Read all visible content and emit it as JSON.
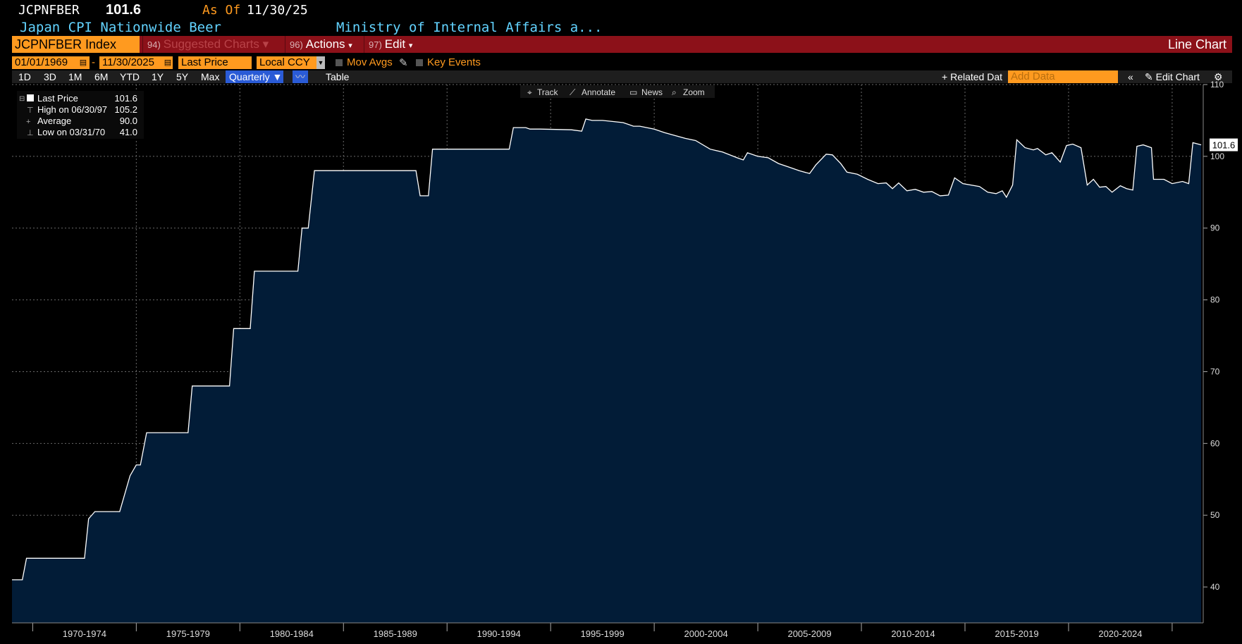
{
  "header": {
    "ticker": "JCPNFBER",
    "last_price": "101.6",
    "as_of_label": "As Of",
    "as_of_date": "11/30/25",
    "description": "Japan CPI Nationwide Beer",
    "source": "Ministry of Internal Affairs a..."
  },
  "menu": {
    "security": "JCPNFBER Index",
    "suggested_num": "94)",
    "suggested": "Suggested Charts",
    "actions_num": "96)",
    "actions": "Actions",
    "edit_num": "97)",
    "edit": "Edit",
    "chart_type": "Line Chart"
  },
  "controls": {
    "start_date": "01/01/1969",
    "dash": "-",
    "end_date": "11/30/2025",
    "price_field": "Last Price",
    "currency": "Local CCY",
    "mov_avgs": "Mov Avgs",
    "key_events": "Key Events"
  },
  "toolbar": {
    "periods": [
      "1D",
      "3D",
      "1M",
      "6M",
      "YTD",
      "1Y",
      "5Y",
      "Max"
    ],
    "frequency": "Quarterly",
    "table": "Table",
    "related": "Related Dat",
    "add_data_placeholder": "Add Data",
    "edit_chart": "Edit Chart",
    "tools": [
      "Track",
      "Annotate",
      "News",
      "Zoom"
    ]
  },
  "legend": {
    "last_price_label": "Last Price",
    "last_price_value": "101.6",
    "high_label": "High on 06/30/97",
    "high_value": "105.2",
    "average_label": "Average",
    "average_value": "90.0",
    "low_label": "Low on 03/31/70",
    "low_value": "41.0"
  },
  "colors": {
    "line": "#ffffff",
    "fill": "#021c37",
    "accent_orange": "#ff9a1f",
    "menu_red": "#8c1119",
    "cyan_text": "#62d3ff",
    "grid": "#6a6a6a"
  },
  "chart_data": {
    "type": "area",
    "title": "",
    "xlabel": "",
    "ylabel": "",
    "ylim": [
      35,
      110
    ],
    "yticks": [
      40,
      50,
      60,
      70,
      80,
      90,
      100,
      110
    ],
    "xlim": [
      1969,
      2026.5
    ],
    "x_categories": [
      "1970-1974",
      "1975-1979",
      "1980-1984",
      "1985-1989",
      "1990-1994",
      "1995-1999",
      "2000-2004",
      "2005-2009",
      "2010-2014",
      "2015-2019",
      "2020-2024"
    ],
    "last_value_label": "101.6",
    "grid": true,
    "series": [
      {
        "name": "Last Price",
        "points": [
          [
            1969.0,
            41.0
          ],
          [
            1969.5,
            41.0
          ],
          [
            1969.7,
            44.0
          ],
          [
            1972.5,
            44.0
          ],
          [
            1972.7,
            49.5
          ],
          [
            1973.0,
            50.5
          ],
          [
            1974.2,
            50.5
          ],
          [
            1974.7,
            55.5
          ],
          [
            1975.0,
            57.0
          ],
          [
            1975.2,
            57.0
          ],
          [
            1975.5,
            61.5
          ],
          [
            1976.0,
            61.5
          ],
          [
            1977.5,
            61.5
          ],
          [
            1977.7,
            68.0
          ],
          [
            1979.5,
            68.0
          ],
          [
            1979.7,
            76.0
          ],
          [
            1980.5,
            76.0
          ],
          [
            1980.7,
            84.0
          ],
          [
            1982.8,
            84.0
          ],
          [
            1983.0,
            90.0
          ],
          [
            1983.3,
            90.0
          ],
          [
            1983.6,
            98.0
          ],
          [
            1988.5,
            98.0
          ],
          [
            1988.7,
            94.5
          ],
          [
            1989.1,
            94.5
          ],
          [
            1989.3,
            101.0
          ],
          [
            1993.0,
            101.0
          ],
          [
            1993.2,
            104.0
          ],
          [
            1993.8,
            104.0
          ],
          [
            1994.0,
            103.8
          ],
          [
            1994.5,
            103.8
          ],
          [
            1996.0,
            103.7
          ],
          [
            1996.5,
            103.5
          ],
          [
            1996.7,
            105.2
          ],
          [
            1997.0,
            105.0
          ],
          [
            1997.5,
            105.0
          ],
          [
            1998.5,
            104.7
          ],
          [
            1999.0,
            104.2
          ],
          [
            1999.3,
            104.2
          ],
          [
            2000.0,
            103.8
          ],
          [
            2000.5,
            103.3
          ],
          [
            2001.5,
            102.5
          ],
          [
            2002.0,
            102.2
          ],
          [
            2002.7,
            101.0
          ],
          [
            2003.3,
            100.6
          ],
          [
            2004.0,
            99.8
          ],
          [
            2004.3,
            99.5
          ],
          [
            2004.5,
            100.5
          ],
          [
            2005.0,
            100.0
          ],
          [
            2005.5,
            99.8
          ],
          [
            2006.0,
            99.0
          ],
          [
            2006.5,
            98.5
          ],
          [
            2007.0,
            98.0
          ],
          [
            2007.5,
            97.6
          ],
          [
            2007.8,
            98.8
          ],
          [
            2008.3,
            100.3
          ],
          [
            2008.6,
            100.2
          ],
          [
            2009.0,
            99.0
          ],
          [
            2009.3,
            97.8
          ],
          [
            2009.8,
            97.5
          ],
          [
            2010.3,
            96.8
          ],
          [
            2010.8,
            96.2
          ],
          [
            2011.2,
            96.3
          ],
          [
            2011.5,
            95.5
          ],
          [
            2011.8,
            96.3
          ],
          [
            2012.2,
            95.2
          ],
          [
            2012.6,
            95.4
          ],
          [
            2013.0,
            95.0
          ],
          [
            2013.4,
            95.1
          ],
          [
            2013.8,
            94.5
          ],
          [
            2014.2,
            94.6
          ],
          [
            2014.5,
            97.0
          ],
          [
            2014.9,
            96.2
          ],
          [
            2015.7,
            95.8
          ],
          [
            2016.1,
            95.0
          ],
          [
            2016.5,
            94.8
          ],
          [
            2016.8,
            95.2
          ],
          [
            2017.0,
            94.3
          ],
          [
            2017.3,
            96.0
          ],
          [
            2017.5,
            102.3
          ],
          [
            2017.9,
            101.2
          ],
          [
            2018.3,
            100.9
          ],
          [
            2018.5,
            101.1
          ],
          [
            2018.9,
            100.2
          ],
          [
            2019.2,
            100.5
          ],
          [
            2019.6,
            99.2
          ],
          [
            2019.9,
            101.5
          ],
          [
            2020.2,
            101.7
          ],
          [
            2020.6,
            101.2
          ],
          [
            2020.9,
            96.0
          ],
          [
            2021.2,
            96.8
          ],
          [
            2021.5,
            95.7
          ],
          [
            2021.8,
            95.8
          ],
          [
            2022.1,
            95.0
          ],
          [
            2022.5,
            95.9
          ],
          [
            2022.8,
            95.5
          ],
          [
            2023.1,
            95.3
          ],
          [
            2023.3,
            101.4
          ],
          [
            2023.6,
            101.6
          ],
          [
            2024.0,
            101.2
          ],
          [
            2024.1,
            96.8
          ],
          [
            2024.6,
            96.8
          ],
          [
            2025.0,
            96.2
          ],
          [
            2025.5,
            96.5
          ],
          [
            2025.8,
            96.2
          ],
          [
            2026.0,
            101.9
          ],
          [
            2026.4,
            101.6
          ]
        ]
      }
    ]
  }
}
